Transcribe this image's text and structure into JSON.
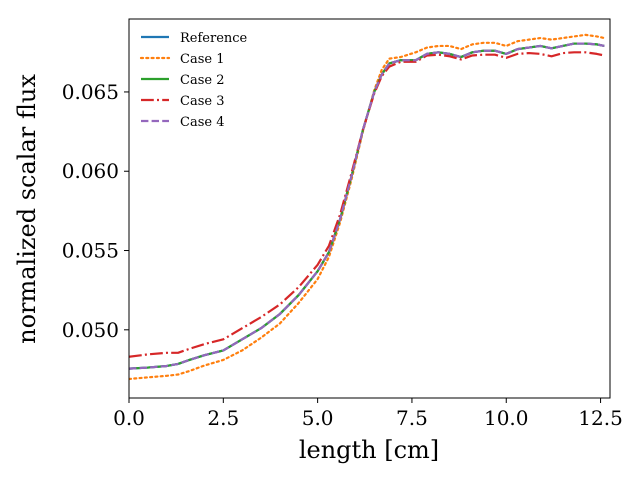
{
  "chart_data": {
    "type": "line",
    "title": "",
    "xlabel": "length [cm]",
    "ylabel": "normalized scalar flux",
    "xlim": [
      0.0,
      12.75
    ],
    "ylim": [
      0.0457,
      0.0696
    ],
    "x_ticks": [
      0.0,
      2.5,
      5.0,
      7.5,
      10.0,
      12.5
    ],
    "x_tick_labels": [
      "0.0",
      "2.5",
      "5.0",
      "7.5",
      "10.0",
      "12.5"
    ],
    "y_ticks": [
      0.05,
      0.055,
      0.06,
      0.065
    ],
    "y_tick_labels": [
      "0.050",
      "0.055",
      "0.060",
      "0.065"
    ],
    "grid": false,
    "legend_position": "top-left",
    "series": [
      {
        "name": "Reference",
        "color": "#1f77b4",
        "dash": "solid",
        "x": [
          0.0,
          0.5,
          1.0,
          1.3,
          1.6,
          2.0,
          2.5,
          3.0,
          3.5,
          4.0,
          4.5,
          5.0,
          5.3,
          5.6,
          5.9,
          6.2,
          6.5,
          6.7,
          6.9,
          7.2,
          7.6,
          7.9,
          8.2,
          8.5,
          8.8,
          9.1,
          9.4,
          9.7,
          10.0,
          10.3,
          10.6,
          10.9,
          11.2,
          11.5,
          11.8,
          12.1,
          12.4,
          12.6
        ],
        "y": [
          0.04755,
          0.04762,
          0.04772,
          0.04785,
          0.0481,
          0.0484,
          0.0487,
          0.0494,
          0.0501,
          0.051,
          0.0522,
          0.0537,
          0.0549,
          0.057,
          0.0597,
          0.0626,
          0.065,
          0.0661,
          0.0668,
          0.067,
          0.067,
          0.0674,
          0.0675,
          0.0674,
          0.0672,
          0.0675,
          0.0676,
          0.0676,
          0.0674,
          0.0677,
          0.0678,
          0.0679,
          0.06775,
          0.0679,
          0.06805,
          0.06805,
          0.068,
          0.0679
        ]
      },
      {
        "name": "Case 1",
        "color": "#ff7f0e",
        "dash": "dotted",
        "x": [
          0.0,
          0.5,
          1.0,
          1.3,
          1.6,
          2.0,
          2.5,
          3.0,
          3.5,
          4.0,
          4.5,
          5.0,
          5.3,
          5.6,
          5.9,
          6.2,
          6.5,
          6.7,
          6.9,
          7.2,
          7.6,
          7.9,
          8.2,
          8.5,
          8.8,
          9.1,
          9.4,
          9.7,
          10.0,
          10.3,
          10.6,
          10.9,
          11.2,
          11.5,
          11.8,
          12.1,
          12.4,
          12.6
        ],
        "y": [
          0.0469,
          0.047,
          0.0471,
          0.04718,
          0.0474,
          0.04775,
          0.0481,
          0.0487,
          0.0495,
          0.0504,
          0.0517,
          0.0532,
          0.0546,
          0.0568,
          0.0595,
          0.0625,
          0.0651,
          0.0664,
          0.0671,
          0.0672,
          0.0675,
          0.0678,
          0.0679,
          0.0679,
          0.0677,
          0.068,
          0.0681,
          0.0681,
          0.0679,
          0.0682,
          0.0683,
          0.0684,
          0.0683,
          0.0684,
          0.0685,
          0.0686,
          0.0685,
          0.0684
        ]
      },
      {
        "name": "Case 2",
        "color": "#2ca02c",
        "dash": "solid",
        "x": [
          0.0,
          0.5,
          1.0,
          1.3,
          1.6,
          2.0,
          2.5,
          3.0,
          3.5,
          4.0,
          4.5,
          5.0,
          5.3,
          5.6,
          5.9,
          6.2,
          6.5,
          6.7,
          6.9,
          7.2,
          7.6,
          7.9,
          8.2,
          8.5,
          8.8,
          9.1,
          9.4,
          9.7,
          10.0,
          10.3,
          10.6,
          10.9,
          11.2,
          11.5,
          11.8,
          12.1,
          12.4,
          12.6
        ],
        "y": [
          0.04755,
          0.04762,
          0.04772,
          0.04785,
          0.0481,
          0.0484,
          0.0487,
          0.0494,
          0.0501,
          0.051,
          0.0522,
          0.0537,
          0.0549,
          0.057,
          0.0597,
          0.0626,
          0.065,
          0.0661,
          0.0668,
          0.067,
          0.067,
          0.0674,
          0.0675,
          0.0674,
          0.0672,
          0.0675,
          0.0676,
          0.0676,
          0.0674,
          0.0677,
          0.0678,
          0.0679,
          0.06775,
          0.0679,
          0.06805,
          0.06805,
          0.068,
          0.0679
        ]
      },
      {
        "name": "Case 3",
        "color": "#d62728",
        "dash": "dashdot",
        "x": [
          0.0,
          0.5,
          1.0,
          1.3,
          1.6,
          2.0,
          2.5,
          3.0,
          3.5,
          4.0,
          4.5,
          5.0,
          5.3,
          5.6,
          5.9,
          6.2,
          6.5,
          6.7,
          6.9,
          7.2,
          7.6,
          7.9,
          8.2,
          8.5,
          8.8,
          9.1,
          9.4,
          9.7,
          10.0,
          10.3,
          10.6,
          10.9,
          11.2,
          11.5,
          11.8,
          12.1,
          12.4,
          12.6
        ],
        "y": [
          0.0483,
          0.04845,
          0.04855,
          0.04855,
          0.0488,
          0.0491,
          0.0494,
          0.0501,
          0.0508,
          0.0516,
          0.0527,
          0.0541,
          0.0553,
          0.0573,
          0.0599,
          0.0626,
          0.0649,
          0.066,
          0.0666,
          0.0669,
          0.0669,
          0.0673,
          0.06735,
          0.06725,
          0.06705,
          0.0673,
          0.06735,
          0.06735,
          0.06715,
          0.0674,
          0.06745,
          0.0674,
          0.06725,
          0.06745,
          0.0675,
          0.0675,
          0.0674,
          0.0673
        ]
      },
      {
        "name": "Case 4",
        "color": "#9467bd",
        "dash": "dashed",
        "x": [
          0.0,
          0.5,
          1.0,
          1.3,
          1.6,
          2.0,
          2.5,
          3.0,
          3.5,
          4.0,
          4.5,
          5.0,
          5.3,
          5.6,
          5.9,
          6.2,
          6.5,
          6.7,
          6.9,
          7.2,
          7.6,
          7.9,
          8.2,
          8.5,
          8.8,
          9.1,
          9.4,
          9.7,
          10.0,
          10.3,
          10.6,
          10.9,
          11.2,
          11.5,
          11.8,
          12.1,
          12.4,
          12.6
        ],
        "y": [
          0.04755,
          0.04762,
          0.04772,
          0.04785,
          0.0481,
          0.0484,
          0.0487,
          0.0494,
          0.0501,
          0.051,
          0.0522,
          0.0537,
          0.0549,
          0.057,
          0.0597,
          0.0626,
          0.065,
          0.0661,
          0.0668,
          0.067,
          0.067,
          0.0674,
          0.0675,
          0.0674,
          0.0672,
          0.0675,
          0.0676,
          0.0676,
          0.0674,
          0.0677,
          0.0678,
          0.0679,
          0.06775,
          0.0679,
          0.06805,
          0.06805,
          0.068,
          0.0679
        ]
      }
    ]
  }
}
